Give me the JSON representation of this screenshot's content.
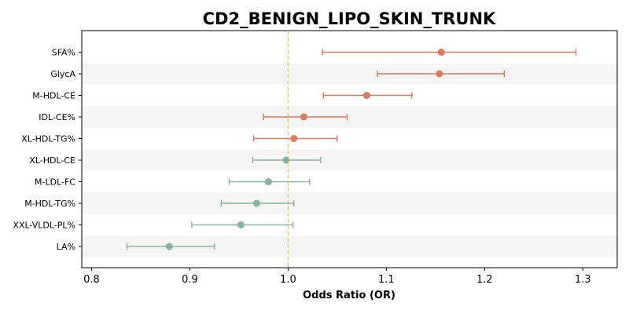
{
  "chart_data": {
    "type": "forest",
    "title": "CD2_BENIGN_LIPO_SKIN_TRUNK",
    "xlabel": "Odds Ratio (OR)",
    "xlim": [
      0.79,
      1.335
    ],
    "xticks": [
      "0.8",
      "0.9",
      "1.0",
      "1.1",
      "1.2",
      "1.3"
    ],
    "xtick_values": [
      0.8,
      0.9,
      1.0,
      1.1,
      1.2,
      1.3
    ],
    "reference_line": 1.0,
    "grid": false,
    "colors": {
      "positive": "#d97a5c",
      "negative": "#86b59b",
      "reference": "#f2c47a",
      "band": "#f5f5f5"
    },
    "rows": [
      {
        "label": "SFA%",
        "or": 1.156,
        "lower": 1.035,
        "upper": 1.293
      },
      {
        "label": "GlycA",
        "or": 1.154,
        "lower": 1.091,
        "upper": 1.22
      },
      {
        "label": "M-HDL-CE",
        "or": 1.08,
        "lower": 1.036,
        "upper": 1.126
      },
      {
        "label": "IDL-CE%",
        "or": 1.016,
        "lower": 0.975,
        "upper": 1.06
      },
      {
        "label": "XL-HDL-TG%",
        "or": 1.006,
        "lower": 0.965,
        "upper": 1.05
      },
      {
        "label": "XL-HDL-CE",
        "or": 0.998,
        "lower": 0.964,
        "upper": 1.033
      },
      {
        "label": "M-LDL-FC",
        "or": 0.98,
        "lower": 0.94,
        "upper": 1.022
      },
      {
        "label": "M-HDL-TG%",
        "or": 0.968,
        "lower": 0.932,
        "upper": 1.006
      },
      {
        "label": "XXL-VLDL-PL%",
        "or": 0.952,
        "lower": 0.902,
        "upper": 1.005
      },
      {
        "label": "LA%",
        "or": 0.879,
        "lower": 0.836,
        "upper": 0.925
      }
    ]
  }
}
